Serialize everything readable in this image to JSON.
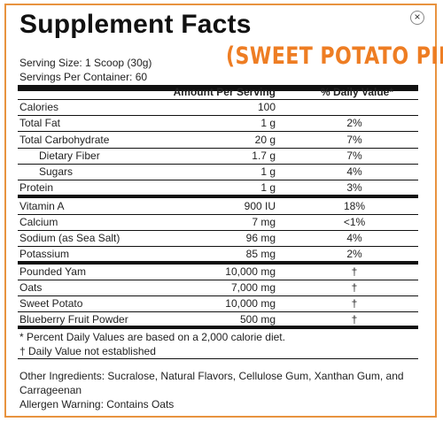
{
  "title": "Supplement Facts",
  "flavor": "(SWEET POTATO PIE)",
  "serving_size": "Serving Size: 1 Scoop (30g)",
  "servings_per_container": "Servings Per Container: 60",
  "header": {
    "amount": "Amount Per Serving",
    "dv": "% Daily Value*"
  },
  "close_icon": "×",
  "rows": [
    {
      "name": "Calories",
      "amount": "100",
      "dv": ""
    },
    {
      "name": "Total Fat",
      "amount": "1 g",
      "dv": "2%"
    },
    {
      "name": "Total Carbohydrate",
      "amount": "20 g",
      "dv": "7%"
    },
    {
      "name": "Dietary Fiber",
      "amount": "1.7 g",
      "dv": "7%"
    },
    {
      "name": "Sugars",
      "amount": "1 g",
      "dv": "4%"
    },
    {
      "name": "Protein",
      "amount": "1 g",
      "dv": "3%"
    },
    {
      "name": "Vitamin A",
      "amount": "900 IU",
      "dv": "18%"
    },
    {
      "name": "Calcium",
      "amount": "7 mg",
      "dv": "<1%"
    },
    {
      "name": "Sodium (as Sea Salt)",
      "amount": "96 mg",
      "dv": "4%"
    },
    {
      "name": "Potassium",
      "amount": "85 mg",
      "dv": "2%"
    },
    {
      "name": "Pounded Yam",
      "amount": "10,000 mg",
      "dv": "†"
    },
    {
      "name": "Oats",
      "amount": "7,000 mg",
      "dv": "†"
    },
    {
      "name": "Sweet Potato",
      "amount": "10,000 mg",
      "dv": "†"
    },
    {
      "name": "Blueberry Fruit Powder",
      "amount": "500 mg",
      "dv": "†"
    }
  ],
  "footnotes": [
    "* Percent Daily Values are based on a 2,000 calorie diet.",
    "† Daily Value not established"
  ],
  "other_ingredients": [
    "Other Ingredients: Sucralose, Natural Flavors, Cellulose Gum, Xanthan Gum, and",
    "Carrageenan"
  ],
  "allergen": "Allergen Warning: Contains Oats"
}
